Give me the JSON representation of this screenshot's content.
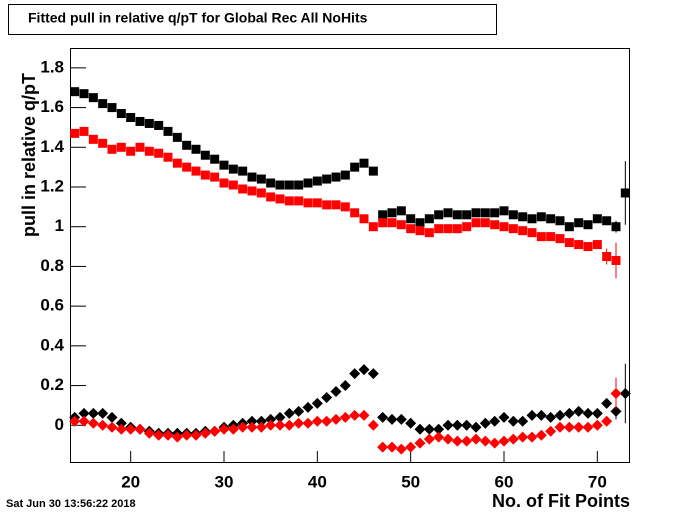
{
  "chart_data": {
    "type": "scatter",
    "title": "Fitted pull in relative q/pT for Global Rec All NoHits",
    "y_label": "pull in relative q/pT",
    "x_label": "No. of Fit Points",
    "timestamp": "Sat Jun 30 13:56:22 2018",
    "x": [
      14,
      15,
      16,
      17,
      18,
      19,
      20,
      21,
      22,
      23,
      24,
      25,
      26,
      27,
      28,
      29,
      30,
      31,
      32,
      33,
      34,
      35,
      36,
      37,
      38,
      39,
      40,
      41,
      42,
      43,
      44,
      45,
      46,
      47,
      48,
      49,
      50,
      51,
      52,
      53,
      54,
      55,
      56,
      57,
      58,
      59,
      60,
      61,
      62,
      63,
      64,
      65,
      66,
      67,
      68,
      69,
      70,
      71,
      72,
      73
    ],
    "xlim": [
      13.5,
      73.5
    ],
    "xticks": [
      20,
      30,
      40,
      50,
      60,
      70
    ],
    "ylim": [
      -0.19,
      1.9
    ],
    "yticks": [
      0,
      0.2,
      0.4,
      0.6,
      0.8,
      1,
      1.2,
      1.4,
      1.6,
      1.8
    ],
    "grid": false,
    "series": [
      {
        "color": "#000000",
        "marker": "square",
        "values": [
          1.68,
          1.67,
          1.65,
          1.62,
          1.6,
          1.57,
          1.55,
          1.53,
          1.52,
          1.51,
          1.48,
          1.45,
          1.41,
          1.39,
          1.36,
          1.34,
          1.31,
          1.29,
          1.28,
          1.25,
          1.24,
          1.22,
          1.21,
          1.21,
          1.21,
          1.22,
          1.23,
          1.24,
          1.25,
          1.26,
          1.3,
          1.32,
          1.28,
          1.06,
          1.07,
          1.08,
          1.04,
          1.02,
          1.04,
          1.06,
          1.07,
          1.06,
          1.06,
          1.07,
          1.07,
          1.07,
          1.08,
          1.06,
          1.05,
          1.04,
          1.05,
          1.04,
          1.03,
          1.0,
          1.02,
          1.01,
          1.04,
          1.03,
          1.0,
          1.17
        ],
        "errors": [
          null,
          null,
          null,
          null,
          null,
          null,
          null,
          null,
          null,
          null,
          null,
          null,
          null,
          null,
          null,
          null,
          null,
          null,
          null,
          null,
          null,
          null,
          null,
          null,
          null,
          null,
          null,
          null,
          null,
          null,
          null,
          null,
          null,
          null,
          null,
          null,
          null,
          null,
          null,
          null,
          null,
          null,
          null,
          null,
          null,
          null,
          null,
          null,
          null,
          null,
          null,
          null,
          null,
          null,
          null,
          null,
          null,
          null,
          0.03,
          0.16
        ]
      },
      {
        "color": "#ff0000",
        "marker": "square",
        "values": [
          1.47,
          1.48,
          1.44,
          1.42,
          1.39,
          1.4,
          1.38,
          1.4,
          1.38,
          1.37,
          1.35,
          1.32,
          1.3,
          1.28,
          1.26,
          1.25,
          1.22,
          1.21,
          1.19,
          1.18,
          1.17,
          1.15,
          1.14,
          1.13,
          1.13,
          1.12,
          1.12,
          1.11,
          1.11,
          1.1,
          1.07,
          1.04,
          1.0,
          1.02,
          1.02,
          1.01,
          0.99,
          0.98,
          0.97,
          0.99,
          0.99,
          0.99,
          1.0,
          1.02,
          1.02,
          1.01,
          1.0,
          0.99,
          0.98,
          0.97,
          0.95,
          0.95,
          0.94,
          0.92,
          0.91,
          0.9,
          0.91,
          0.85,
          0.83,
          null
        ],
        "errors": [
          null,
          null,
          null,
          null,
          null,
          null,
          null,
          null,
          null,
          null,
          null,
          null,
          null,
          null,
          null,
          null,
          null,
          null,
          null,
          null,
          null,
          null,
          null,
          null,
          null,
          null,
          null,
          null,
          null,
          null,
          null,
          null,
          null,
          null,
          null,
          null,
          null,
          null,
          null,
          null,
          null,
          null,
          null,
          null,
          null,
          null,
          null,
          null,
          null,
          null,
          null,
          null,
          null,
          null,
          null,
          null,
          null,
          0.04,
          0.09,
          null
        ]
      },
      {
        "color": "#000000",
        "marker": "diamond",
        "values": [
          0.04,
          0.06,
          0.06,
          0.06,
          0.04,
          0.01,
          -0.01,
          -0.02,
          -0.03,
          -0.04,
          -0.04,
          -0.04,
          -0.04,
          -0.04,
          -0.03,
          -0.03,
          -0.01,
          0.0,
          0.01,
          0.02,
          0.02,
          0.03,
          0.04,
          0.06,
          0.07,
          0.09,
          0.11,
          0.14,
          0.17,
          0.2,
          0.26,
          0.28,
          0.26,
          0.04,
          0.03,
          0.03,
          0.01,
          -0.02,
          -0.02,
          -0.02,
          0.0,
          0.0,
          0.0,
          -0.01,
          0.01,
          0.02,
          0.04,
          0.02,
          0.02,
          0.05,
          0.05,
          0.04,
          0.05,
          0.06,
          0.07,
          0.06,
          0.06,
          0.11,
          0.07,
          0.16
        ],
        "errors": [
          null,
          null,
          null,
          null,
          null,
          null,
          null,
          null,
          null,
          null,
          null,
          null,
          null,
          null,
          null,
          null,
          null,
          null,
          null,
          null,
          null,
          null,
          null,
          null,
          null,
          null,
          null,
          null,
          null,
          null,
          null,
          null,
          null,
          null,
          null,
          null,
          null,
          null,
          null,
          null,
          null,
          null,
          null,
          null,
          null,
          null,
          null,
          null,
          null,
          null,
          null,
          null,
          null,
          null,
          null,
          null,
          null,
          null,
          0.04,
          0.15
        ]
      },
      {
        "color": "#ff0000",
        "marker": "diamond",
        "values": [
          0.02,
          0.02,
          0.01,
          0.0,
          -0.01,
          -0.02,
          -0.02,
          -0.02,
          -0.04,
          -0.05,
          -0.05,
          -0.06,
          -0.05,
          -0.05,
          -0.04,
          -0.03,
          -0.02,
          -0.02,
          -0.01,
          -0.01,
          -0.01,
          0.0,
          0.0,
          0.0,
          0.01,
          0.01,
          0.02,
          0.02,
          0.03,
          0.04,
          0.05,
          0.05,
          0.0,
          -0.11,
          -0.11,
          -0.12,
          -0.11,
          -0.09,
          -0.07,
          -0.06,
          -0.07,
          -0.08,
          -0.08,
          -0.07,
          -0.08,
          -0.09,
          -0.08,
          -0.07,
          -0.06,
          -0.06,
          -0.05,
          -0.03,
          -0.01,
          -0.01,
          -0.01,
          -0.01,
          0.0,
          0.02,
          0.16,
          null
        ],
        "errors": [
          null,
          null,
          null,
          null,
          null,
          null,
          null,
          null,
          null,
          null,
          null,
          null,
          null,
          null,
          null,
          null,
          null,
          null,
          null,
          null,
          null,
          null,
          null,
          null,
          null,
          null,
          null,
          null,
          null,
          null,
          null,
          null,
          null,
          null,
          null,
          null,
          null,
          null,
          null,
          null,
          null,
          null,
          null,
          null,
          null,
          null,
          null,
          null,
          null,
          null,
          null,
          null,
          null,
          null,
          null,
          null,
          null,
          null,
          0.08,
          null
        ]
      }
    ]
  }
}
